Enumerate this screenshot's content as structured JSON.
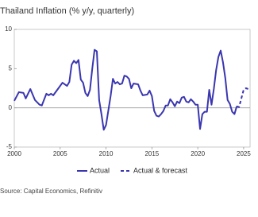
{
  "chart_data": {
    "type": "line",
    "title": "Thailand Inflation (% y/y, quarterly)",
    "source": "Source: Capital Economics, Refinitiv",
    "xlim": [
      2000,
      2025.7
    ],
    "xticks": [
      2000,
      2005,
      2010,
      2015,
      2020,
      2025
    ],
    "ylim": [
      -5,
      10
    ],
    "yticks": [
      -5,
      0,
      5,
      10
    ],
    "series": [
      {
        "name": "Actual",
        "color": "#3a36b0",
        "dashed": false,
        "x": [
          2000.0,
          2000.5,
          2001.0,
          2001.25,
          2001.75,
          2002.25,
          2002.75,
          2003.0,
          2003.5,
          2003.75,
          2004.0,
          2004.25,
          2004.75,
          2005.25,
          2005.75,
          2006.0,
          2006.25,
          2006.5,
          2006.75,
          2007.0,
          2007.25,
          2007.5,
          2007.75,
          2008.0,
          2008.25,
          2008.5,
          2008.75,
          2009.0,
          2009.25,
          2009.5,
          2009.75,
          2010.0,
          2010.5,
          2010.75,
          2011.0,
          2011.25,
          2011.5,
          2011.75,
          2012.0,
          2012.25,
          2012.5,
          2012.75,
          2013.0,
          2013.5,
          2013.75,
          2014.0,
          2014.5,
          2014.75,
          2015.0,
          2015.25,
          2015.5,
          2015.75,
          2016.0,
          2016.25,
          2016.5,
          2016.75,
          2017.0,
          2017.25,
          2017.5,
          2017.75,
          2018.0,
          2018.25,
          2018.5,
          2018.75,
          2019.0,
          2019.25,
          2019.5,
          2019.75,
          2020.0,
          2020.25,
          2020.5,
          2020.75,
          2021.0,
          2021.25,
          2021.5,
          2021.75,
          2022.0,
          2022.25,
          2022.5,
          2022.75,
          2023.0,
          2023.25,
          2023.5,
          2023.75,
          2024.0,
          2024.25
        ],
        "values": [
          0.9,
          2.0,
          1.9,
          1.2,
          2.4,
          1.0,
          0.4,
          0.3,
          1.8,
          1.6,
          1.8,
          1.6,
          2.4,
          3.2,
          2.8,
          3.3,
          5.5,
          6.0,
          5.7,
          6.1,
          3.6,
          3.2,
          1.9,
          1.5,
          2.3,
          5.0,
          7.4,
          7.2,
          1.0,
          -0.8,
          -2.8,
          -2.2,
          1.5,
          3.7,
          3.1,
          3.3,
          3.0,
          3.1,
          4.1,
          4.0,
          3.7,
          2.5,
          3.1,
          3.0,
          2.2,
          1.6,
          1.7,
          2.2,
          1.5,
          -0.4,
          -1.0,
          -1.1,
          -0.8,
          -0.4,
          0.3,
          0.3,
          1.1,
          0.7,
          0.2,
          0.8,
          0.6,
          1.3,
          1.4,
          0.8,
          0.7,
          1.1,
          0.8,
          0.4,
          0.4,
          -2.7,
          -0.8,
          -0.5,
          -0.5,
          2.3,
          0.4,
          2.4,
          4.8,
          6.5,
          7.3,
          5.8,
          3.8,
          1.0,
          0.5,
          -0.5,
          -0.8,
          0.2
        ]
      },
      {
        "name": "Actual & forecast",
        "color": "#3a36b0",
        "dashed": true,
        "x": [
          2024.25,
          2024.5,
          2024.75,
          2025.0,
          2025.25,
          2025.5
        ],
        "values": [
          0.2,
          0.1,
          1.2,
          2.3,
          2.5,
          2.4
        ]
      }
    ]
  }
}
